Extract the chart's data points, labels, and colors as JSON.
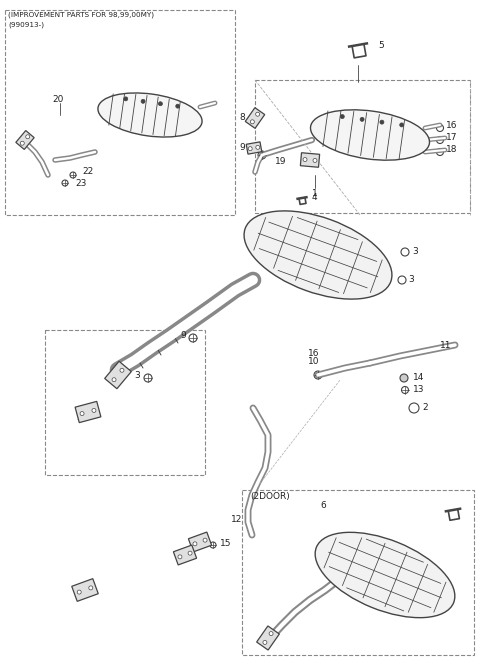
{
  "bg_color": "#ffffff",
  "line_color": "#444444",
  "text_color": "#222222",
  "improvement_label_line1": "(IMPROVEMENT PARTS FOR 98,99,00MY)",
  "improvement_label_line2": "(990913-)",
  "two_door_label": "(2DOOR)"
}
